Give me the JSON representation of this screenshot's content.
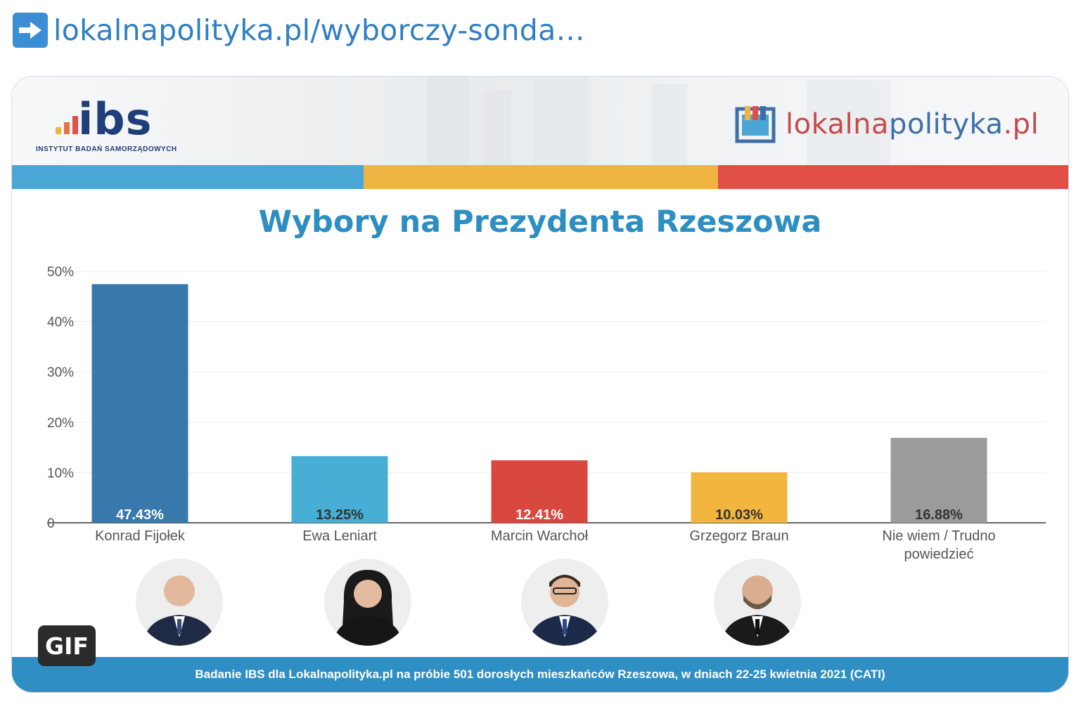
{
  "link": {
    "icon": "arrow-right-icon",
    "text": "lokalnapolityka.pl/wyborczy-sonda…",
    "accent": "#3b8ed4"
  },
  "header": {
    "ibs_logo_text": "ibs",
    "ibs_subtitle": "INSTYTUT BADAŃ SAMORZĄDOWYCH",
    "lp_logo_main": "lokalna",
    "lp_logo_highlight": "polityka",
    "lp_logo_tld": ".pl",
    "stripe_colors": [
      "#4aa6d4",
      "#f0b443",
      "#e04e45"
    ]
  },
  "chart_data": {
    "type": "bar",
    "title": "Wybory na Prezydenta Rzeszowa",
    "categories": [
      "Konrad Fijołek",
      "Ewa Leniart",
      "Marcin Warchoł",
      "Grzegorz Braun",
      "Nie wiem / Trudno powiedzieć"
    ],
    "values": [
      47.43,
      13.25,
      12.41,
      10.03,
      16.88
    ],
    "value_labels": [
      "47.43%",
      "13.25%",
      "12.41%",
      "10.03%",
      "16.88%"
    ],
    "colors": [
      "#3878ad",
      "#47aed6",
      "#d9483f",
      "#f2b63f",
      "#9b9b9b"
    ],
    "ylim": [
      0,
      50
    ],
    "yticks": [
      0,
      10,
      20,
      30,
      40,
      50
    ],
    "ytick_labels": [
      "0",
      "10%",
      "20%",
      "30%",
      "40%",
      "50%"
    ],
    "grid": true
  },
  "footer": {
    "text": "Badanie IBS dla Lokalnapolityka.pl na próbie 501 dorosłych mieszkańców Rzeszowa, w dniach 22-25 kwietnia 2021 (CATI)"
  },
  "badge": "GIF",
  "candidate_photos": [
    "Konrad Fijołek",
    "Ewa Leniart",
    "Marcin Warchoł",
    "Grzegorz Braun"
  ]
}
